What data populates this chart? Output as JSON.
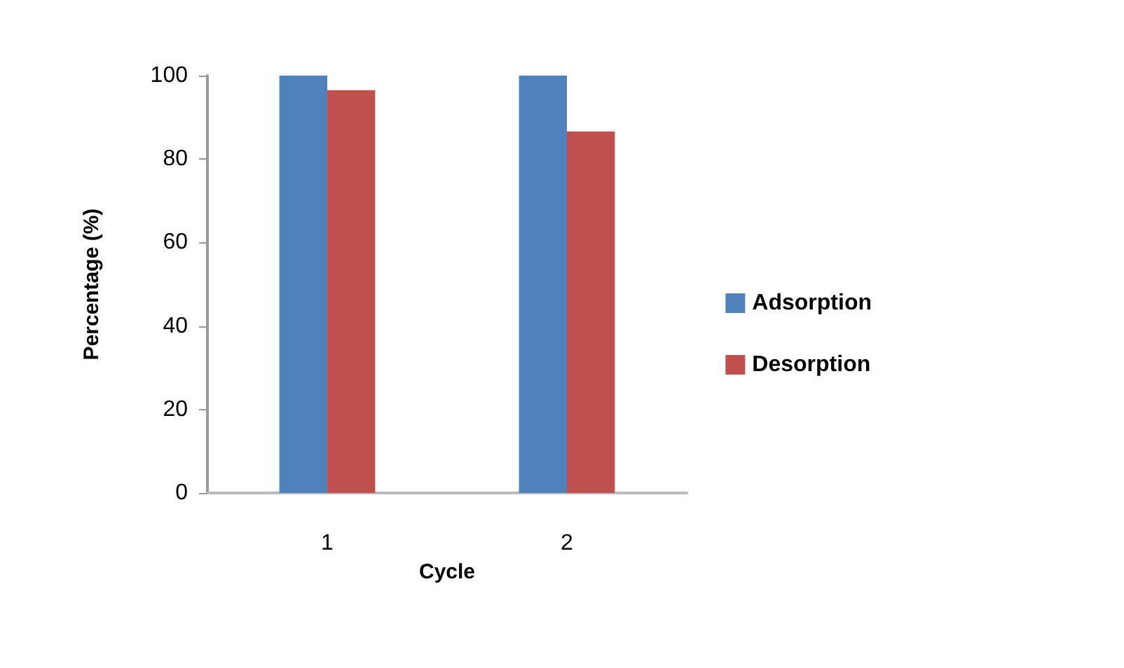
{
  "chart_data": {
    "type": "bar",
    "xlabel": "Cycle",
    "ylabel": "Percentage (%)",
    "categories": [
      "1",
      "2"
    ],
    "series": [
      {
        "name": "Adsorption",
        "color": "#4f81bd",
        "values": [
          100,
          100
        ]
      },
      {
        "name": "Desorption",
        "color": "#c0504d",
        "values": [
          96.5,
          86.6
        ]
      }
    ],
    "ylim": [
      0,
      100
    ],
    "yticks": [
      0,
      20,
      40,
      60,
      80,
      100
    ],
    "grid": false,
    "legend": "right"
  }
}
